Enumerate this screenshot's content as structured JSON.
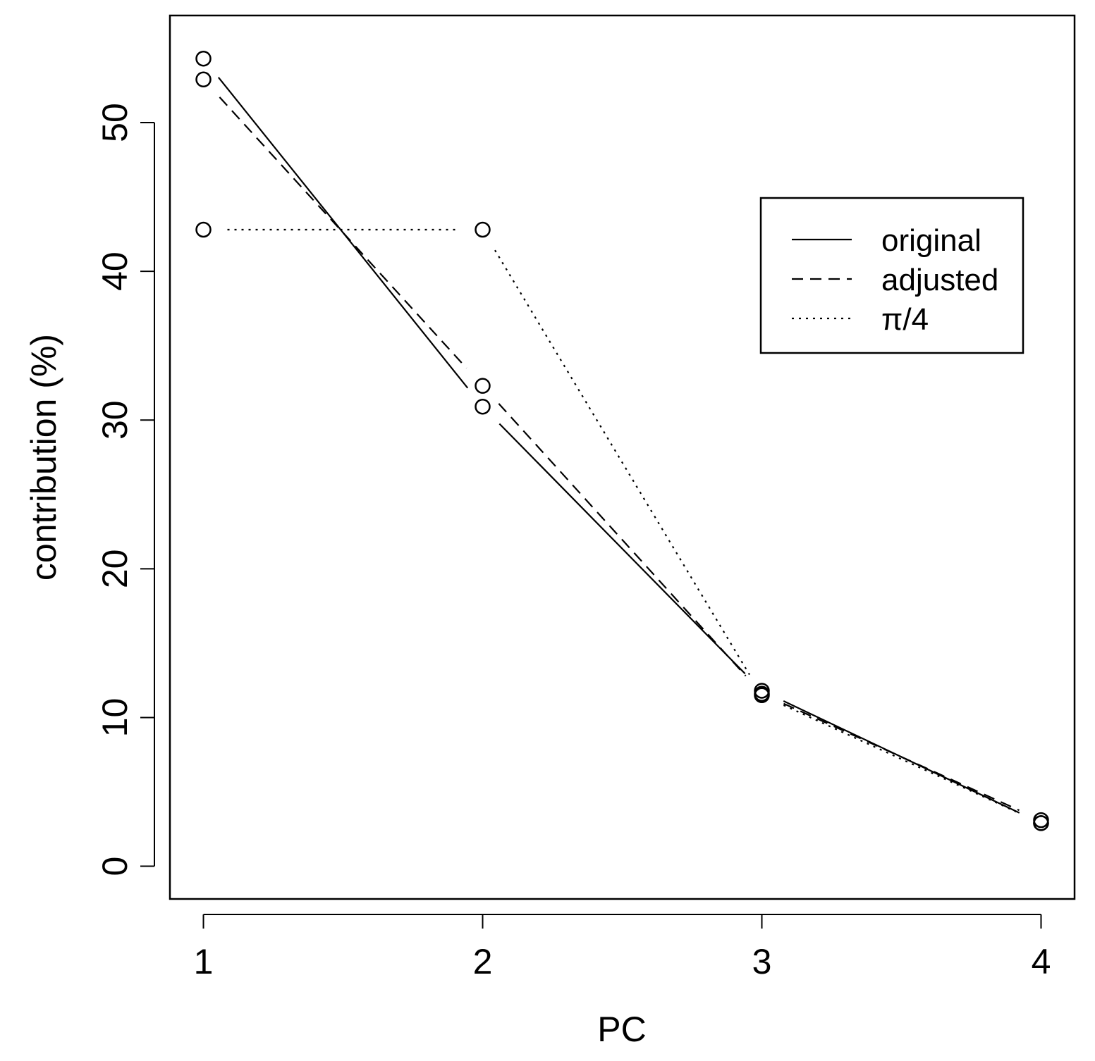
{
  "chart_data": {
    "type": "line",
    "title": "",
    "xlabel": "PC",
    "ylabel": "contribution (%)",
    "x": [
      1,
      2,
      3,
      4
    ],
    "x_ticks": [
      "1",
      "2",
      "3",
      "4"
    ],
    "y_ticks": [
      "0",
      "10",
      "20",
      "30",
      "40",
      "50"
    ],
    "xlim": [
      0.88,
      4.12
    ],
    "ylim": [
      -2.2,
      57.2
    ],
    "grid": false,
    "legend_position": "top-right",
    "series": [
      {
        "name": "original",
        "line_style": "solid",
        "values": [
          54.3,
          30.9,
          11.8,
          2.9
        ]
      },
      {
        "name": "adjusted",
        "line_style": "dashed",
        "values": [
          52.9,
          32.3,
          11.6,
          3.1
        ]
      },
      {
        "name": "π/4",
        "line_style": "dotted",
        "values": [
          42.8,
          42.8,
          11.5,
          2.9
        ]
      }
    ],
    "colors": {
      "line": "#000000",
      "background": "#ffffff"
    }
  }
}
